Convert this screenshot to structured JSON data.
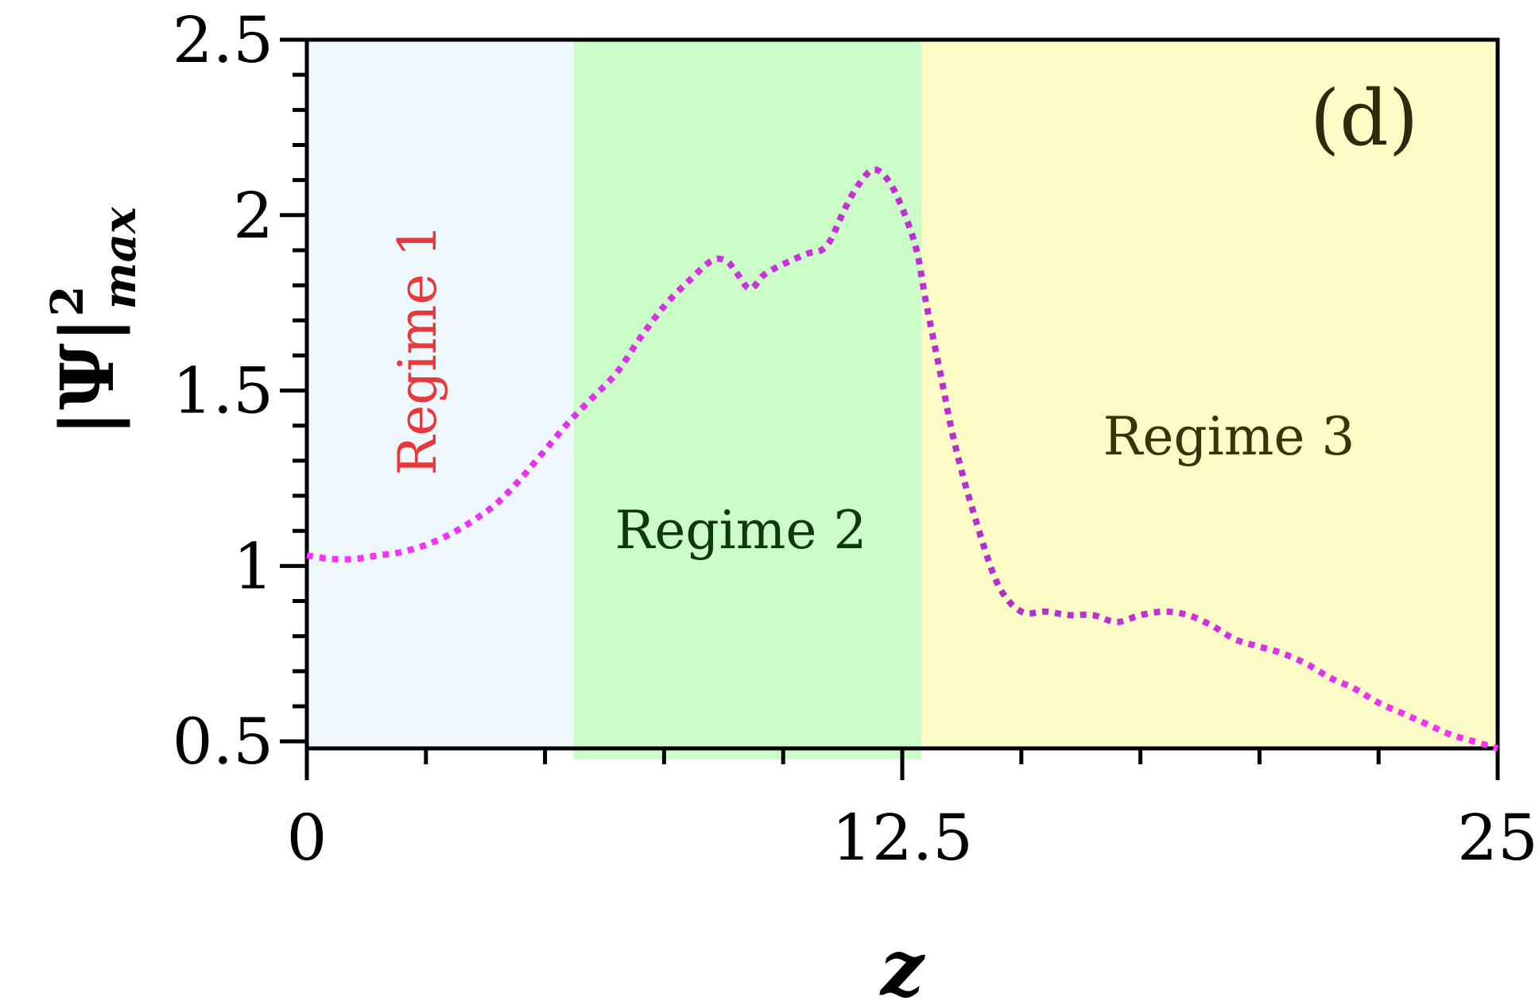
{
  "chart_data": {
    "type": "line",
    "title": "",
    "panel_label": "(d)",
    "xlabel": "z",
    "ylabel_base": "|Ψ|",
    "ylabel_sup": "2",
    "ylabel_sub": "max",
    "xlim": [
      0,
      25
    ],
    "ylim": [
      0.48,
      2.5
    ],
    "xticks": [
      0,
      12.5,
      25
    ],
    "xtick_labels": [
      "0",
      "12.5",
      "25"
    ],
    "yticks": [
      0.5,
      1,
      1.5,
      2,
      2.5
    ],
    "ytick_labels": [
      "0.5",
      "1",
      "1.5",
      "2",
      "2.5"
    ],
    "x_minor_step": 2.5,
    "y_minor_step": 0.1,
    "grid": false,
    "legend": "none",
    "regimes": [
      {
        "label": "Regime 1",
        "x_start": 0,
        "x_end": 5.6,
        "color": "#eef8fc",
        "text_color": "#e8383c",
        "label_orientation": "vertical"
      },
      {
        "label": "Regime 2",
        "x_start": 5.6,
        "x_end": 12.9,
        "color": "#ccfcc8",
        "text_color": "#0c3a0c",
        "label_orientation": "horizontal"
      },
      {
        "label": "Regime 3",
        "x_start": 12.9,
        "x_end": 25,
        "color": "#fdfcc6",
        "text_color": "#3a3208",
        "label_orientation": "horizontal"
      }
    ],
    "series": [
      {
        "style": "dotted",
        "color_start": "#ff33ff",
        "color_mid": "#b030c8",
        "x": [
          0,
          0.5,
          1,
          1.5,
          2,
          2.5,
          3,
          3.5,
          4,
          4.5,
          5,
          5.5,
          6,
          6.5,
          7,
          7.5,
          8,
          8.5,
          8.8,
          9,
          9.3,
          9.6,
          10,
          10.5,
          10.8,
          11,
          11.3,
          11.6,
          11.9,
          12.2,
          12.5,
          12.8,
          13,
          13.3,
          13.6,
          14,
          14.5,
          15,
          15.5,
          16,
          16.5,
          17,
          17.5,
          18,
          18.5,
          19,
          19.5,
          20,
          20.5,
          21,
          21.5,
          22,
          22.5,
          23,
          23.5,
          24,
          24.5,
          25
        ],
        "y": [
          1.03,
          1.02,
          1.02,
          1.03,
          1.04,
          1.06,
          1.09,
          1.13,
          1.18,
          1.25,
          1.33,
          1.41,
          1.48,
          1.55,
          1.65,
          1.74,
          1.81,
          1.87,
          1.87,
          1.84,
          1.79,
          1.83,
          1.86,
          1.89,
          1.9,
          1.93,
          2.02,
          2.09,
          2.13,
          2.1,
          2.02,
          1.9,
          1.75,
          1.55,
          1.35,
          1.15,
          0.95,
          0.87,
          0.87,
          0.86,
          0.86,
          0.84,
          0.86,
          0.87,
          0.86,
          0.83,
          0.79,
          0.77,
          0.75,
          0.72,
          0.68,
          0.65,
          0.61,
          0.58,
          0.55,
          0.52,
          0.5,
          0.48
        ]
      }
    ]
  }
}
